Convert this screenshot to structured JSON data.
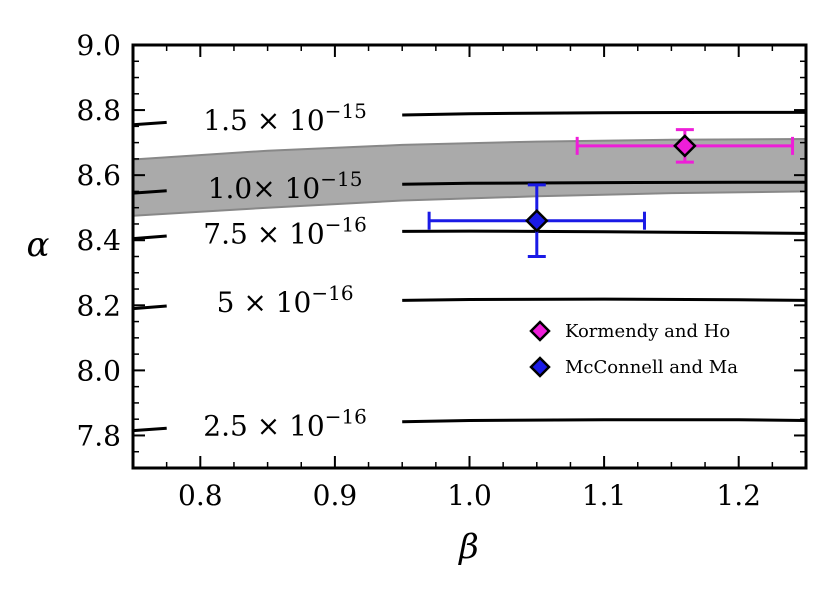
{
  "chart_data": {
    "type": "line",
    "title": "",
    "xlabel": "β",
    "ylabel": "α",
    "xlim": [
      0.75,
      1.25
    ],
    "ylim": [
      7.7,
      9.0
    ],
    "grid": false,
    "xticks": [
      0.8,
      0.9,
      1.0,
      1.1,
      1.2
    ],
    "xtick_labels": [
      "0.8",
      "0.9",
      "1.0",
      "1.1",
      "1.2"
    ],
    "yticks": [
      7.8,
      8.0,
      8.2,
      8.4,
      8.6,
      8.8,
      9.0
    ],
    "ytick_labels": [
      "7.8",
      "8.0",
      "8.2",
      "8.4",
      "8.6",
      "8.8",
      "9.0"
    ],
    "contours": [
      {
        "level_label": {
          "mantissa": "1.5 ×",
          "base": "10",
          "exponent": "−15"
        },
        "x": [
          0.75,
          0.775,
          0.95,
          1.0,
          1.1,
          1.2,
          1.25
        ],
        "y": [
          8.755,
          8.762,
          8.785,
          8.789,
          8.792,
          8.793,
          8.793
        ],
        "label_at": [
          0.85,
          8.77
        ]
      },
      {
        "level_label": {
          "mantissa": "1.0×",
          "base": "10",
          "exponent": "−15"
        },
        "x": [
          0.75,
          0.775,
          0.95,
          1.0,
          1.1,
          1.2,
          1.25
        ],
        "y": [
          8.545,
          8.552,
          8.572,
          8.575,
          8.577,
          8.578,
          8.578
        ],
        "label_at": [
          0.85,
          8.56
        ]
      },
      {
        "level_label": {
          "mantissa": "7.5 ×",
          "base": "10",
          "exponent": "−16"
        },
        "x": [
          0.75,
          0.775,
          0.95,
          1.0,
          1.1,
          1.2,
          1.25
        ],
        "y": [
          8.405,
          8.413,
          8.427,
          8.428,
          8.426,
          8.423,
          8.421
        ],
        "label_at": [
          0.85,
          8.42
        ]
      },
      {
        "level_label": {
          "mantissa": "5 ×",
          "base": "10",
          "exponent": "−16"
        },
        "x": [
          0.75,
          0.775,
          0.95,
          1.0,
          1.1,
          1.2,
          1.25
        ],
        "y": [
          8.19,
          8.198,
          8.215,
          8.218,
          8.219,
          8.217,
          8.215
        ],
        "label_at": [
          0.85,
          8.21
        ]
      },
      {
        "level_label": {
          "mantissa": "2.5 ×",
          "base": "10",
          "exponent": "−16"
        },
        "x": [
          0.75,
          0.775,
          0.95,
          1.0,
          1.1,
          1.2,
          1.25
        ],
        "y": [
          7.815,
          7.822,
          7.842,
          7.846,
          7.848,
          7.848,
          7.846
        ],
        "label_at": [
          0.85,
          7.83
        ]
      }
    ],
    "band": {
      "x": [
        0.75,
        0.85,
        0.95,
        1.05,
        1.15,
        1.25
      ],
      "upper": [
        8.648,
        8.675,
        8.693,
        8.703,
        8.709,
        8.711
      ],
      "lower": [
        8.475,
        8.5,
        8.522,
        8.535,
        8.545,
        8.55
      ],
      "color": "#aaaaaa",
      "edge_color": "#888888"
    },
    "series": [
      {
        "name": "Kormendy and Ho",
        "x": 1.16,
        "y": 8.69,
        "xerr": [
          1.08,
          1.24
        ],
        "yerr": [
          8.64,
          8.74
        ],
        "color": "#ee1ed8",
        "marker": "diamond"
      },
      {
        "name": "McConnell and Ma",
        "x": 1.05,
        "y": 8.46,
        "xerr": [
          0.97,
          1.13
        ],
        "yerr": [
          8.35,
          8.57
        ],
        "color": "#1a1ae6",
        "marker": "diamond"
      }
    ],
    "legend": {
      "placement": "lower-right"
    }
  }
}
